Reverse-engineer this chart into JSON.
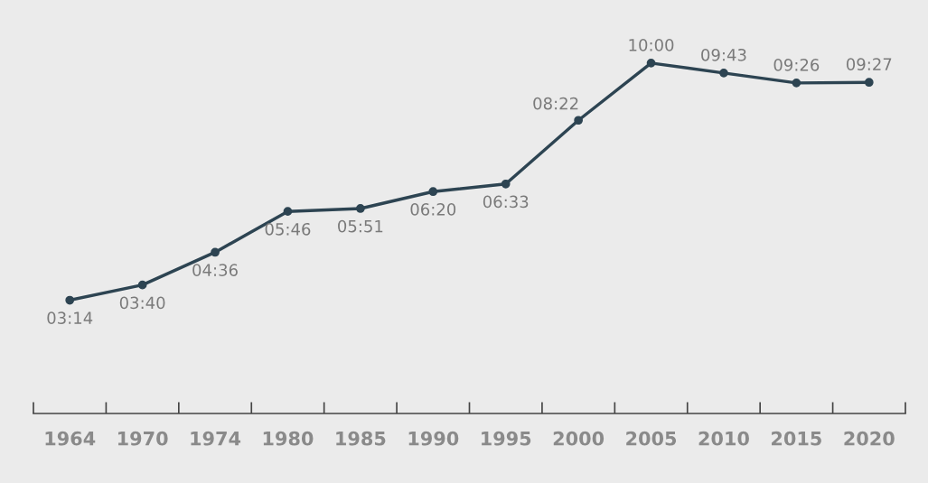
{
  "chart_data": {
    "type": "line",
    "categories": [
      "1964",
      "1970",
      "1974",
      "1980",
      "1985",
      "1990",
      "1995",
      "2000",
      "2005",
      "2010",
      "2015",
      "2020"
    ],
    "series": [
      {
        "color": "#2d4452",
        "values": [
          3.233,
          3.667,
          4.6,
          5.767,
          5.85,
          6.333,
          6.55,
          8.367,
          10,
          9.717,
          9.433,
          9.45
        ],
        "value_labels": [
          "03:14",
          "03:40",
          "04:36",
          "05:46",
          "05:51",
          "06:20",
          "06:33",
          "08:22",
          "10:00",
          "09:43",
          "09:26",
          "09:27"
        ]
      }
    ],
    "ylim": [
      0,
      11.8
    ],
    "tick_labels": "x",
    "grid": false,
    "legend": false,
    "marker": "circle",
    "line_style": "solid"
  }
}
